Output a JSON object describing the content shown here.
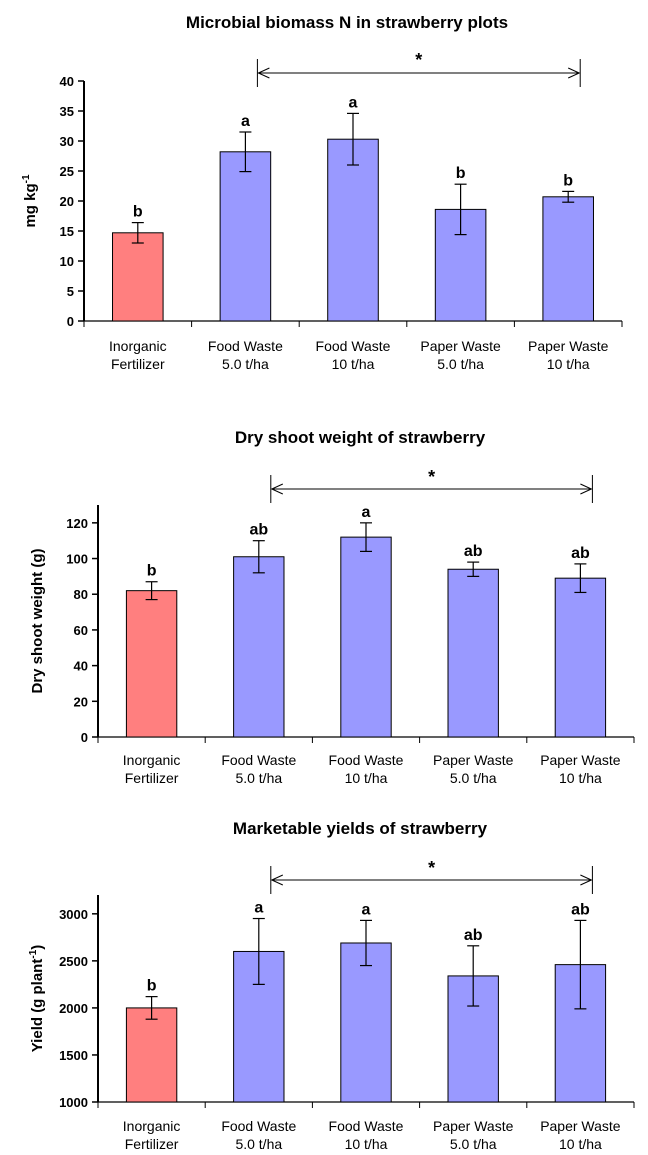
{
  "chart_data": [
    {
      "type": "bar",
      "title": "Microbial biomass N in strawberry plots",
      "ylabel": "mg kg",
      "ylabel_sup": "-1",
      "ylim": [
        0,
        40
      ],
      "yticks": [
        0,
        5,
        10,
        15,
        20,
        25,
        30,
        35,
        40
      ],
      "categories": [
        [
          "Inorganic",
          "Fertilizer"
        ],
        [
          "Food Waste",
          "5.0 t/ha"
        ],
        [
          "Food Waste",
          "10 t/ha"
        ],
        [
          "Paper Waste",
          "5.0 t/ha"
        ],
        [
          "Paper Waste",
          "10 t/ha"
        ]
      ],
      "values": [
        14.7,
        28.2,
        30.3,
        18.6,
        20.7
      ],
      "errors": [
        1.7,
        3.3,
        4.3,
        4.2,
        0.9
      ],
      "letters": [
        "b",
        "a",
        "a",
        "b",
        "b"
      ],
      "colors": [
        "#ff7f7f",
        "#9999ff",
        "#9999ff",
        "#9999ff",
        "#9999ff"
      ],
      "bracket_label": "*",
      "grid": false
    },
    {
      "type": "bar",
      "title": "Dry shoot weight of strawberry",
      "ylabel": "Dry shoot weight (g)",
      "ylabel_sup": "",
      "ylim": [
        0,
        130
      ],
      "yticks": [
        0,
        20,
        40,
        60,
        80,
        100,
        120
      ],
      "categories": [
        [
          "Inorganic",
          "Fertilizer"
        ],
        [
          "Food Waste",
          "5.0 t/ha"
        ],
        [
          "Food Waste",
          "10 t/ha"
        ],
        [
          "Paper Waste",
          "5.0 t/ha"
        ],
        [
          "Paper Waste",
          "10 t/ha"
        ]
      ],
      "values": [
        82,
        101,
        112,
        94,
        89
      ],
      "errors": [
        5,
        9,
        8,
        4,
        8
      ],
      "letters": [
        "b",
        "ab",
        "a",
        "ab",
        "ab"
      ],
      "colors": [
        "#ff7f7f",
        "#9999ff",
        "#9999ff",
        "#9999ff",
        "#9999ff"
      ],
      "bracket_label": "*",
      "grid": false
    },
    {
      "type": "bar",
      "title": "Marketable yields of strawberry",
      "ylabel": "Yield (g plant",
      "ylabel_sup": "-1",
      "ylabel_tail": ")",
      "ylim": [
        1000,
        3200
      ],
      "yticks": [
        1000,
        1500,
        2000,
        2500,
        3000
      ],
      "categories": [
        [
          "Inorganic",
          "Fertilizer"
        ],
        [
          "Food Waste",
          "5.0 t/ha"
        ],
        [
          "Food Waste",
          "10 t/ha"
        ],
        [
          "Paper Waste",
          "5.0 t/ha"
        ],
        [
          "Paper Waste",
          "10 t/ha"
        ]
      ],
      "values": [
        2000,
        2600,
        2690,
        2340,
        2460
      ],
      "errors": [
        120,
        350,
        240,
        320,
        470
      ],
      "letters": [
        "b",
        "a",
        "a",
        "ab",
        "ab"
      ],
      "colors": [
        "#ff7f7f",
        "#9999ff",
        "#9999ff",
        "#9999ff",
        "#9999ff"
      ],
      "bracket_label": "*",
      "grid": false
    }
  ]
}
